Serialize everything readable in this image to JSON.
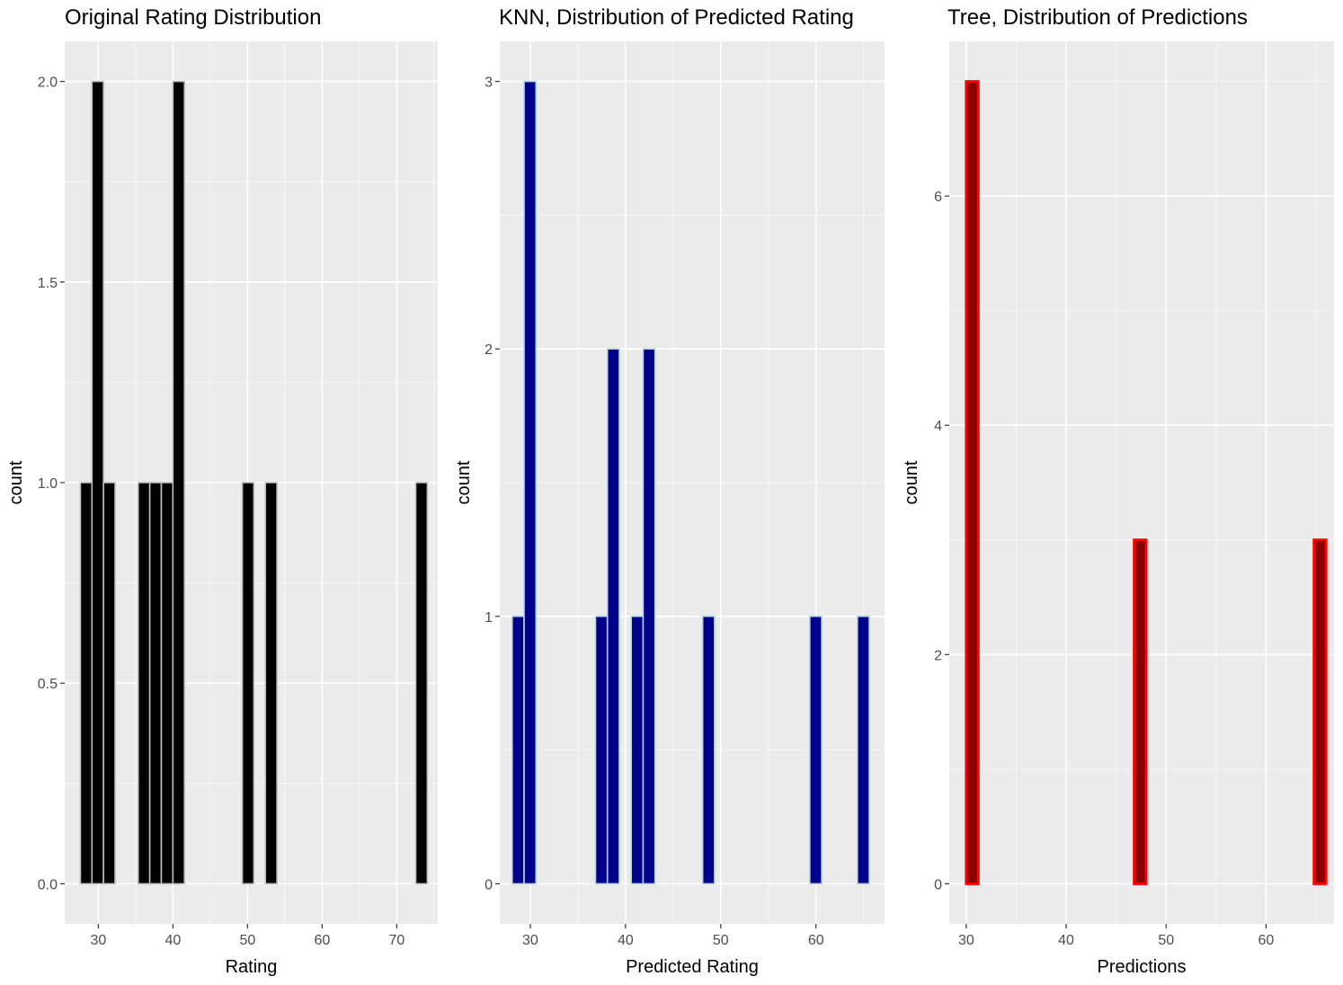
{
  "chart_data": [
    {
      "type": "bar",
      "title": "Original Rating Distribution",
      "xlabel": "Rating",
      "ylabel": "count",
      "xlim": [
        25.5,
        75.5
      ],
      "ylim": [
        -0.1,
        2.1
      ],
      "x_ticks": [
        30,
        40,
        50,
        60,
        70
      ],
      "y_ticks": [
        0.0,
        0.5,
        1.0,
        1.5,
        2.0
      ],
      "y_tick_labels": [
        "0.0",
        "0.5",
        "1.0",
        "1.5",
        "2.0"
      ],
      "bin_width": 1.55,
      "bins_start": 27.6,
      "bin_counts": [
        1,
        2,
        1,
        0,
        0,
        1,
        1,
        1,
        2,
        0,
        0,
        0,
        0,
        0,
        1,
        0,
        1,
        0,
        0,
        0,
        0,
        0,
        0,
        0,
        0,
        0,
        0,
        0,
        0,
        1
      ],
      "fill": "#000000",
      "outline": "#bebebe"
    },
    {
      "type": "bar",
      "title": "KNN, Distribution of Predicted Rating",
      "xlabel": "Predicted Rating",
      "ylabel": "count",
      "xlim": [
        26.8,
        67.2
      ],
      "ylim": [
        -0.15,
        3.15
      ],
      "x_ticks": [
        30,
        40,
        50,
        60
      ],
      "y_ticks": [
        0,
        1,
        2,
        3
      ],
      "y_tick_labels": [
        "0",
        "1",
        "2",
        "3"
      ],
      "bin_width": 1.25,
      "bins_start": 28.1,
      "bin_counts": [
        1,
        3,
        0,
        0,
        0,
        0,
        0,
        1,
        2,
        0,
        1,
        2,
        0,
        0,
        0,
        0,
        1,
        0,
        0,
        0,
        0,
        0,
        0,
        0,
        0,
        1,
        0,
        0,
        0,
        1
      ],
      "fill": "#00008b",
      "outline": "#add8e6"
    },
    {
      "type": "bar",
      "title": "Tree, Distribution of Predictions",
      "xlabel": "Predictions",
      "ylabel": "count",
      "xlim": [
        28.3,
        66.8
      ],
      "ylim": [
        -0.35,
        7.35
      ],
      "x_ticks": [
        30,
        40,
        50,
        60
      ],
      "y_ticks": [
        0,
        2,
        4,
        6
      ],
      "y_tick_labels": [
        "0",
        "2",
        "4",
        "6"
      ],
      "bin_width": 1.2,
      "bins_start": 30.0,
      "bin_counts": [
        7,
        0,
        0,
        0,
        0,
        0,
        0,
        0,
        0,
        0,
        0,
        0,
        0,
        0,
        3,
        0,
        0,
        0,
        0,
        0,
        0,
        0,
        0,
        0,
        0,
        0,
        0,
        0,
        0,
        3
      ],
      "fill": "#8b0000",
      "outline": "#ff0000"
    }
  ]
}
